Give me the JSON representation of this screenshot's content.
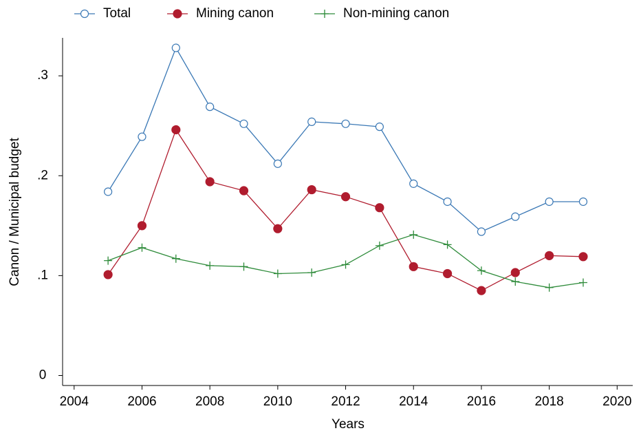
{
  "chart_data": {
    "type": "line",
    "x_label": "Years",
    "y_label": "Canon / Municipal budget",
    "x": [
      2005,
      2006,
      2007,
      2008,
      2009,
      2010,
      2011,
      2012,
      2013,
      2014,
      2015,
      2016,
      2017,
      2018,
      2019
    ],
    "series": [
      {
        "name": "Total",
        "color": "#3a78b5",
        "marker": "hollow-circle",
        "values": [
          0.184,
          0.239,
          0.328,
          0.269,
          0.252,
          0.212,
          0.254,
          0.252,
          0.249,
          0.192,
          0.174,
          0.144,
          0.159,
          0.174,
          0.174
        ]
      },
      {
        "name": "Mining canon",
        "color": "#b01c2e",
        "marker": "filled-circle",
        "values": [
          0.101,
          0.15,
          0.246,
          0.194,
          0.185,
          0.147,
          0.186,
          0.179,
          0.168,
          0.109,
          0.102,
          0.085,
          0.103,
          0.12,
          0.119
        ]
      },
      {
        "name": "Non-mining canon",
        "color": "#2e8b3a",
        "marker": "plus",
        "values": [
          0.115,
          0.128,
          0.117,
          0.11,
          0.109,
          0.102,
          0.103,
          0.111,
          0.13,
          0.141,
          0.131,
          0.105,
          0.094,
          0.088,
          0.093
        ]
      }
    ],
    "xlim": [
      2003.66,
      2020.46
    ],
    "xticks": [
      2004,
      2006,
      2008,
      2010,
      2012,
      2014,
      2016,
      2018,
      2020
    ],
    "ylim": [
      -0.01,
      0.338
    ],
    "yticks": [
      0,
      {
        "value": 0.1,
        "label": ".1"
      },
      {
        "value": 0.2,
        "label": ".2"
      },
      {
        "value": 0.3,
        "label": ".3"
      }
    ],
    "grid": false,
    "legend": "top"
  }
}
